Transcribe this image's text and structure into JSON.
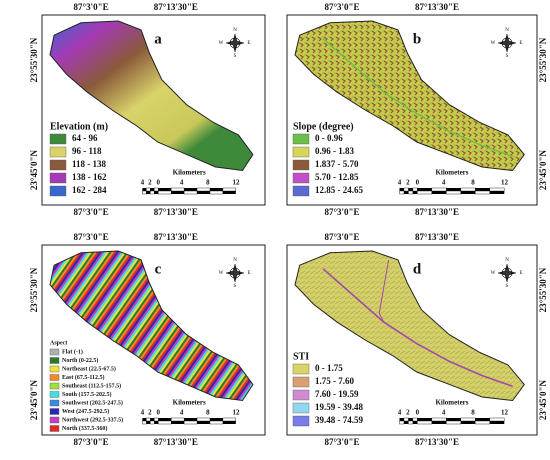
{
  "panels": [
    {
      "label": "a",
      "top_coords": [
        "87°3'0\"E",
        "87°13'30\"E"
      ],
      "bottom_coords": [
        "87°3'0\"E",
        "87°13'30\"E"
      ],
      "side_coords": [
        "23°55'30\"N",
        "23°45'0\"N"
      ],
      "legend": {
        "title": "Elevation (m)",
        "items": [
          {
            "label": "64 - 96",
            "color": "#3f8a3a"
          },
          {
            "label": "96 - 118",
            "color": "#d9d36a"
          },
          {
            "label": "118 - 138",
            "color": "#8a5a3a"
          },
          {
            "label": "138 - 162",
            "color": "#a43ab5"
          },
          {
            "label": "162 - 284",
            "color": "#3a66d0"
          }
        ]
      },
      "scale": {
        "unit": "Kilometers",
        "ticks": [
          "4",
          "2",
          "0",
          "4",
          "8",
          "12"
        ]
      },
      "compass": [
        "N",
        "S",
        "E",
        "W"
      ]
    },
    {
      "label": "b",
      "top_coords": [
        "87°3'0\"E",
        "87°13'30\"E"
      ],
      "bottom_coords": [
        "87°3'0\"E",
        "87°13'30\"E"
      ],
      "side_coords": [
        "23°55'30\"N",
        "23°45'0\"N"
      ],
      "legend": {
        "title": "Slope (degree)",
        "items": [
          {
            "label": "0 - 0.96",
            "color": "#6cbf4a"
          },
          {
            "label": "0.96 - 1.83",
            "color": "#d6d65a"
          },
          {
            "label": "1.837 - 5.70",
            "color": "#8a5a3a"
          },
          {
            "label": "5.70 - 12.85",
            "color": "#c24fc9"
          },
          {
            "label": "12.85 - 24.65",
            "color": "#5a6ad0"
          }
        ]
      },
      "scale": {
        "unit": "Kilometers",
        "ticks": [
          "4",
          "2",
          "0",
          "4",
          "8",
          "12"
        ]
      },
      "compass": [
        "N",
        "S",
        "E",
        "W"
      ]
    },
    {
      "label": "c",
      "top_coords": [
        "87°3'0\"E",
        "87°13'30\"E"
      ],
      "bottom_coords": [
        "87°3'0\"E",
        "87°13'30\"E"
      ],
      "side_coords": [
        "23°55'30\"N",
        "23°45'0\"N"
      ],
      "legend": {
        "title": "Aspect",
        "items": [
          {
            "label": "Flat (-1)",
            "color": "#b0b0b0"
          },
          {
            "label": "North (0-22.5)",
            "color": "#2a7a2a"
          },
          {
            "label": "Northeast (22.5-67.5)",
            "color": "#f0e040"
          },
          {
            "label": "East (67.5-112.5)",
            "color": "#f08a2a"
          },
          {
            "label": "Southeast (112.5-157.5)",
            "color": "#a0e040"
          },
          {
            "label": "South (157.5-202.5)",
            "color": "#40e0e0"
          },
          {
            "label": "Southwest (202.5-247.5)",
            "color": "#3a8ae0"
          },
          {
            "label": "West (247.5-292.5)",
            "color": "#2a2ab0"
          },
          {
            "label": "Northwest (292.5-337.5)",
            "color": "#c040c0"
          },
          {
            "label": "North (337.5-360)",
            "color": "#e02a2a"
          }
        ]
      },
      "scale": {
        "unit": "Kilometers",
        "ticks": [
          "4",
          "2",
          "0",
          "4",
          "8",
          "12"
        ]
      },
      "compass": [
        "N",
        "S",
        "E",
        "W"
      ]
    },
    {
      "label": "d",
      "top_coords": [
        "87°3'0\"E",
        "87°13'30\"E"
      ],
      "bottom_coords": [
        "87°3'0\"E",
        "87°13'30\"E"
      ],
      "side_coords": [
        "23°55'30\"N",
        "23°45'0\"N"
      ],
      "legend": {
        "title": "STI",
        "items": [
          {
            "label": "0 - 1.75",
            "color": "#d8d46a"
          },
          {
            "label": "1.75 - 7.60",
            "color": "#d9a070"
          },
          {
            "label": "7.60 - 19.59",
            "color": "#cf8ad0"
          },
          {
            "label": "19.59 - 39.48",
            "color": "#8fd8f0"
          },
          {
            "label": "39.48 - 74.59",
            "color": "#7a7ae8"
          }
        ]
      },
      "scale": {
        "unit": "Kilometers",
        "ticks": [
          "4",
          "2",
          "0",
          "4",
          "8",
          "12"
        ]
      },
      "compass": [
        "N",
        "S",
        "E",
        "W"
      ]
    }
  ]
}
